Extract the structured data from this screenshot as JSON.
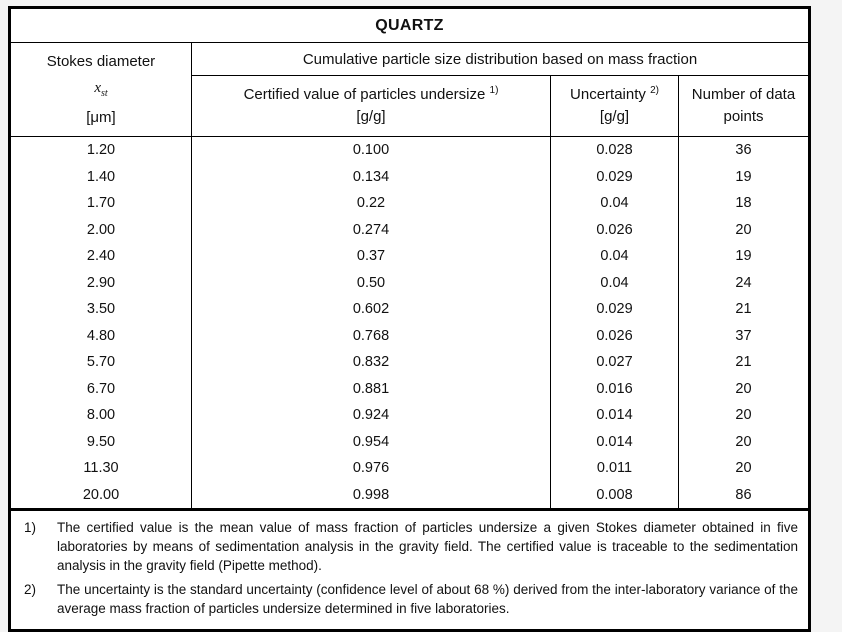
{
  "page": {
    "background_color": "#f4f4f4",
    "border_color": "#000000",
    "cell_background": "#ffffff"
  },
  "table": {
    "title": "QUARTZ",
    "stokes_header": {
      "line1": "Stokes diameter",
      "symbol": "x",
      "symbol_sub": "st",
      "unit": "[μm]"
    },
    "group_header": "Cumulative particle size distribution based on mass fraction",
    "columns": [
      {
        "label": "Certified value of particles undersize",
        "sup": "1)",
        "unit": "[g/g]"
      },
      {
        "label": "Uncertainty",
        "sup": "2)",
        "unit": "[g/g]"
      },
      {
        "label": "Number of data points"
      }
    ],
    "rows": [
      [
        "1.20",
        "0.100",
        "0.028",
        "36"
      ],
      [
        "1.40",
        "0.134",
        "0.029",
        "19"
      ],
      [
        "1.70",
        "0.22",
        "0.04",
        "18"
      ],
      [
        "2.00",
        "0.274",
        "0.026",
        "20"
      ],
      [
        "2.40",
        "0.37",
        "0.04",
        "19"
      ],
      [
        "2.90",
        "0.50",
        "0.04",
        "24"
      ],
      [
        "3.50",
        "0.602",
        "0.029",
        "21"
      ],
      [
        "4.80",
        "0.768",
        "0.026",
        "37"
      ],
      [
        "5.70",
        "0.832",
        "0.027",
        "21"
      ],
      [
        "6.70",
        "0.881",
        "0.016",
        "20"
      ],
      [
        "8.00",
        "0.924",
        "0.014",
        "20"
      ],
      [
        "9.50",
        "0.954",
        "0.014",
        "20"
      ],
      [
        "11.30",
        "0.976",
        "0.011",
        "20"
      ],
      [
        "20.00",
        "0.998",
        "0.008",
        "86"
      ]
    ]
  },
  "footnotes": [
    {
      "marker": "1)",
      "text": "The certified value is the mean value of mass fraction of particles undersize a given Stokes diameter obtained in five laboratories by means of sedimentation analysis in the gravity field. The certified value is traceable to the sedimentation analysis in the gravity field (Pipette method)."
    },
    {
      "marker": "2)",
      "text": "The uncertainty is the standard uncertainty (confidence level of about 68 %) derived from the inter-laboratory variance of the average mass fraction of particles undersize determined in five laboratories."
    }
  ]
}
